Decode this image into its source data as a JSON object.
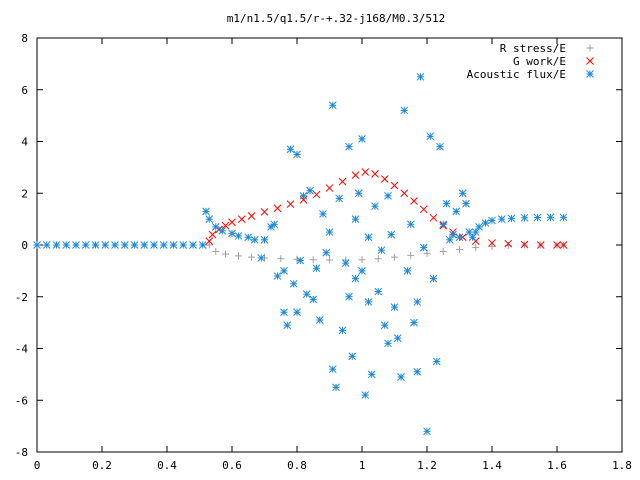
{
  "chart_data": {
    "type": "scatter",
    "title": "m1/n1.5/q1.5/r-+.32-j168/M0.3/512",
    "xlim": [
      0,
      1.8
    ],
    "ylim": [
      -8,
      8
    ],
    "x_ticks": [
      "0",
      "0.2",
      "0.4",
      "0.6",
      "0.8",
      "1",
      "1.2",
      "1.4",
      "1.6",
      "1.8"
    ],
    "y_ticks": [
      "8",
      "6",
      "4",
      "2",
      "0",
      "-2",
      "-4",
      "-6",
      "-8"
    ],
    "grid": false,
    "legend_position": "top-right",
    "series": [
      {
        "name": "R stress/E",
        "marker": "plus",
        "color": "#a0a0a0",
        "points": [
          [
            0.53,
            0.0
          ],
          [
            0.55,
            -0.25
          ],
          [
            0.58,
            -0.35
          ],
          [
            0.62,
            -0.42
          ],
          [
            0.66,
            -0.47
          ],
          [
            0.7,
            -0.5
          ],
          [
            0.75,
            -0.53
          ],
          [
            0.8,
            -0.55
          ],
          [
            0.85,
            -0.57
          ],
          [
            0.9,
            -0.58
          ],
          [
            0.95,
            -0.58
          ],
          [
            1.0,
            -0.57
          ],
          [
            1.05,
            -0.53
          ],
          [
            1.1,
            -0.47
          ],
          [
            1.15,
            -0.4
          ],
          [
            1.2,
            -0.32
          ],
          [
            1.25,
            -0.25
          ],
          [
            1.3,
            -0.17
          ],
          [
            1.35,
            -0.1
          ],
          [
            1.4,
            -0.05
          ],
          [
            1.45,
            -0.02
          ],
          [
            1.5,
            0.0
          ],
          [
            1.55,
            0.0
          ],
          [
            1.6,
            0.0
          ],
          [
            1.62,
            0.0
          ]
        ]
      },
      {
        "name": "G work/E",
        "marker": "cross",
        "color": "#ff0000",
        "points": [
          [
            0.53,
            0.15
          ],
          [
            0.54,
            0.4
          ],
          [
            0.56,
            0.6
          ],
          [
            0.58,
            0.75
          ],
          [
            0.6,
            0.88
          ],
          [
            0.63,
            1.0
          ],
          [
            0.66,
            1.12
          ],
          [
            0.7,
            1.28
          ],
          [
            0.74,
            1.42
          ],
          [
            0.78,
            1.58
          ],
          [
            0.82,
            1.75
          ],
          [
            0.86,
            1.95
          ],
          [
            0.9,
            2.2
          ],
          [
            0.94,
            2.45
          ],
          [
            0.98,
            2.7
          ],
          [
            1.01,
            2.82
          ],
          [
            1.04,
            2.75
          ],
          [
            1.07,
            2.55
          ],
          [
            1.1,
            2.3
          ],
          [
            1.13,
            2.0
          ],
          [
            1.16,
            1.7
          ],
          [
            1.19,
            1.38
          ],
          [
            1.22,
            1.05
          ],
          [
            1.25,
            0.75
          ],
          [
            1.28,
            0.5
          ],
          [
            1.31,
            0.3
          ],
          [
            1.35,
            0.15
          ],
          [
            1.4,
            0.08
          ],
          [
            1.45,
            0.05
          ],
          [
            1.5,
            0.02
          ],
          [
            1.55,
            0.0
          ],
          [
            1.6,
            0.0
          ],
          [
            1.62,
            0.0
          ]
        ]
      },
      {
        "name": "Acoustic flux/E",
        "marker": "star",
        "color": "#1a88d8",
        "points": [
          [
            0.0,
            0.0
          ],
          [
            0.03,
            0.0
          ],
          [
            0.06,
            0.0
          ],
          [
            0.09,
            0.0
          ],
          [
            0.12,
            0.0
          ],
          [
            0.15,
            0.0
          ],
          [
            0.18,
            0.0
          ],
          [
            0.21,
            0.0
          ],
          [
            0.24,
            0.0
          ],
          [
            0.27,
            0.0
          ],
          [
            0.3,
            0.0
          ],
          [
            0.33,
            0.0
          ],
          [
            0.36,
            0.0
          ],
          [
            0.39,
            0.0
          ],
          [
            0.42,
            0.0
          ],
          [
            0.45,
            0.0
          ],
          [
            0.48,
            0.0
          ],
          [
            0.51,
            0.0
          ],
          [
            0.52,
            1.3
          ],
          [
            0.53,
            1.0
          ],
          [
            0.55,
            0.7
          ],
          [
            0.57,
            0.55
          ],
          [
            0.6,
            0.45
          ],
          [
            0.62,
            0.35
          ],
          [
            0.65,
            0.3
          ],
          [
            0.67,
            0.2
          ],
          [
            0.69,
            -0.5
          ],
          [
            0.7,
            0.2
          ],
          [
            0.72,
            0.7
          ],
          [
            0.73,
            0.8
          ],
          [
            0.74,
            -1.2
          ],
          [
            0.76,
            -1.0
          ],
          [
            0.76,
            -2.6
          ],
          [
            0.77,
            -3.1
          ],
          [
            0.78,
            3.7
          ],
          [
            0.79,
            -1.5
          ],
          [
            0.8,
            3.5
          ],
          [
            0.8,
            -2.6
          ],
          [
            0.81,
            -0.6
          ],
          [
            0.82,
            1.9
          ],
          [
            0.83,
            -1.9
          ],
          [
            0.84,
            2.1
          ],
          [
            0.85,
            -2.1
          ],
          [
            0.86,
            -0.9
          ],
          [
            0.87,
            -2.9
          ],
          [
            0.88,
            1.2
          ],
          [
            0.89,
            -0.3
          ],
          [
            0.9,
            0.5
          ],
          [
            0.91,
            -4.8
          ],
          [
            0.91,
            5.4
          ],
          [
            0.92,
            -5.5
          ],
          [
            0.93,
            1.8
          ],
          [
            0.94,
            -3.3
          ],
          [
            0.95,
            -0.7
          ],
          [
            0.96,
            -2.0
          ],
          [
            0.96,
            3.8
          ],
          [
            0.97,
            -4.3
          ],
          [
            0.98,
            1.0
          ],
          [
            0.98,
            -1.3
          ],
          [
            0.99,
            2.0
          ],
          [
            1.0,
            -1.0
          ],
          [
            1.0,
            4.1
          ],
          [
            1.01,
            -5.8
          ],
          [
            1.02,
            0.3
          ],
          [
            1.02,
            -2.2
          ],
          [
            1.03,
            -5.0
          ],
          [
            1.04,
            1.5
          ],
          [
            1.05,
            -1.8
          ],
          [
            1.06,
            -0.2
          ],
          [
            1.07,
            -3.1
          ],
          [
            1.08,
            -3.8
          ],
          [
            1.08,
            1.9
          ],
          [
            1.09,
            0.4
          ],
          [
            1.1,
            -2.4
          ],
          [
            1.11,
            -3.6
          ],
          [
            1.12,
            -5.1
          ],
          [
            1.13,
            5.2
          ],
          [
            1.14,
            -1.0
          ],
          [
            1.15,
            0.8
          ],
          [
            1.16,
            -3.0
          ],
          [
            1.17,
            -2.2
          ],
          [
            1.17,
            -4.9
          ],
          [
            1.18,
            6.5
          ],
          [
            1.19,
            -0.1
          ],
          [
            1.2,
            -7.2
          ],
          [
            1.21,
            4.2
          ],
          [
            1.22,
            -1.3
          ],
          [
            1.23,
            -4.5
          ],
          [
            1.24,
            3.8
          ],
          [
            1.25,
            0.8
          ],
          [
            1.26,
            1.6
          ],
          [
            1.27,
            0.2
          ],
          [
            1.28,
            0.4
          ],
          [
            1.29,
            1.3
          ],
          [
            1.3,
            0.3
          ],
          [
            1.31,
            2.0
          ],
          [
            1.32,
            1.6
          ],
          [
            1.33,
            0.5
          ],
          [
            1.34,
            0.3
          ],
          [
            1.35,
            0.5
          ],
          [
            1.36,
            0.7
          ],
          [
            1.38,
            0.85
          ],
          [
            1.4,
            0.95
          ],
          [
            1.43,
            1.0
          ],
          [
            1.46,
            1.03
          ],
          [
            1.5,
            1.05
          ],
          [
            1.54,
            1.06
          ],
          [
            1.58,
            1.07
          ],
          [
            1.62,
            1.07
          ]
        ]
      }
    ]
  }
}
